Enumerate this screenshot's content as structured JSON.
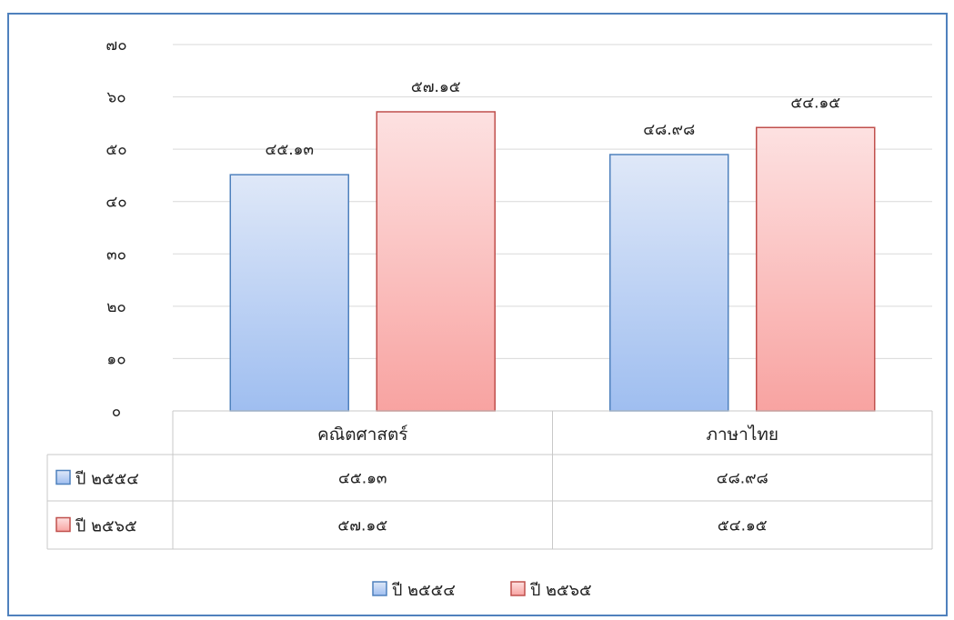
{
  "chart_data": {
    "type": "bar",
    "categories": [
      "คณิตศาสตร์",
      "ภาษาไทย"
    ],
    "series": [
      {
        "name": "ปี ๒๕๕๔",
        "values": [
          45.13,
          48.98
        ],
        "labels": [
          "๔๕.๑๓",
          "๔๘.๙๘"
        ],
        "color": "#4f81bd"
      },
      {
        "name": "ปี ๒๕๖๕",
        "values": [
          57.15,
          54.15
        ],
        "labels": [
          "๕๗.๑๕",
          "๕๔.๑๕"
        ],
        "color": "#c0504d"
      }
    ],
    "ylim": [
      0,
      70
    ],
    "yticks": [
      0,
      10,
      20,
      30,
      40,
      50,
      60,
      70
    ],
    "ytick_labels": [
      "๐",
      "๑๐",
      "๒๐",
      "๓๐",
      "๔๐",
      "๕๐",
      "๖๐",
      "๗๐"
    ],
    "grid": true,
    "data_table": true,
    "legend": "bottom"
  }
}
